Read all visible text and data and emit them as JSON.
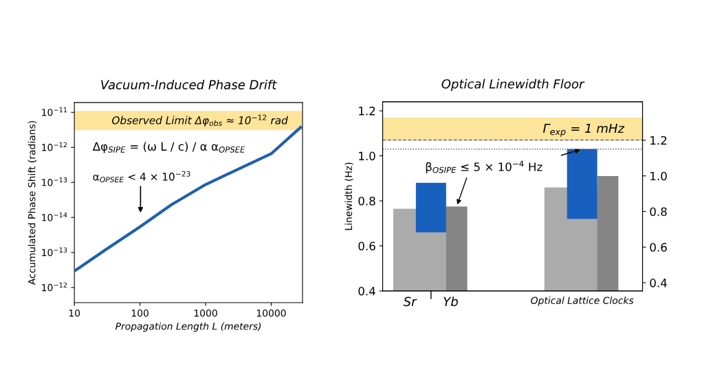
{
  "chart_data": [
    {
      "type": "line",
      "title": "Vacuum-Induced Phase Drift",
      "xlabel": "Propagation Length L (meters)",
      "ylabel": "Accumulated Phase Shift (radians)",
      "log": "xy",
      "x": [
        10,
        30,
        100,
        300,
        1000,
        3000,
        10000,
        28000
      ],
      "series": [
        {
          "color": "#1f5fb0",
          "values": [
            2.95e-16,
            1.2e-15,
            5.4e-15,
            2.3e-14,
            8.7e-14,
            2.3e-13,
            6.6e-13,
            3.7e-12
          ]
        }
      ],
      "xlim": [
        10,
        30000
      ],
      "xticks": [
        10,
        100,
        1000,
        10000
      ],
      "ylim": [
        3.7e-17,
        1.9e-11
      ],
      "yticks": [
        {
          "value": 1e-11,
          "label": "10$^{−11}$"
        },
        {
          "value": 1e-12,
          "label": "10$^{−12}$"
        },
        {
          "value": 1e-13,
          "label": "10$^{−13}$"
        },
        {
          "value": 1e-14,
          "label": "10$^{−14}$"
        },
        {
          "value": 1e-15,
          "label": "10$^{−13}$"
        },
        {
          "value": 1e-16,
          "label": "10$^{−12}$"
        }
      ],
      "bands": [
        {
          "axis": "y",
          "from": 3.1e-12,
          "to": 1.1e-11,
          "label": "Observed Limit Δφ$_{obs}$ ≈ 10$^{−12}$ rad",
          "color": "#fde49b"
        }
      ],
      "annotations": [
        "Δφ$_{SIPE}$ = (ω L / c) / α α$_{OPSEE}$",
        "α$_{OPSEE}$ < 4 × 10$^{−23}$"
      ],
      "line_style": "solid",
      "marker": "none",
      "grid": false
    },
    {
      "type": "bar",
      "title": "Optical Linewidth Floor",
      "ylabel": "Linewidth (Hz)",
      "categories": [
        null,
        null
      ],
      "series": [
        {
          "color": "#ababab",
          "base": [
            0.4,
            0.4
          ],
          "values": [
            0.365,
            0.46
          ]
        },
        {
          "color": "#858585",
          "base": [
            0.4,
            0.4
          ],
          "values": [
            0.375,
            0.51
          ]
        },
        {
          "color": "#1860bd",
          "base": [
            0.66,
            0.72
          ],
          "values": [
            0.22,
            0.31
          ]
        }
      ],
      "ylim": [
        0.4,
        1.24
      ],
      "yticks": [
        0.4,
        0.6,
        0.8,
        {
          "value": 1,
          "label": "1.0"
        },
        1.2
      ],
      "y2lim": [
        0.354,
        1.416
      ],
      "y2ticks": [
        0.4,
        0.6,
        0.8,
        {
          "value": 1,
          "label": "1.0"
        },
        1.2
      ],
      "bands": [
        {
          "axis": "y",
          "from": 1.07,
          "to": 1.17,
          "label": "Γ$_{exp}$ = 1 mHz",
          "color": "#fde49b"
        }
      ],
      "ref_lines": [
        {
          "axis": "y",
          "value": 1.07,
          "color": "#555555",
          "line_style": "dashed"
        },
        {
          "axis": "y",
          "value": 1.03,
          "color": "#555555",
          "line_style": "dotted"
        }
      ],
      "annotations": [
        "β$_{OSIPE}$ ≤ 5 × 10$^{−4}$ Hz",
        "Sr",
        "Yb",
        "Optical Lattice Clocks"
      ],
      "grid": false
    }
  ]
}
